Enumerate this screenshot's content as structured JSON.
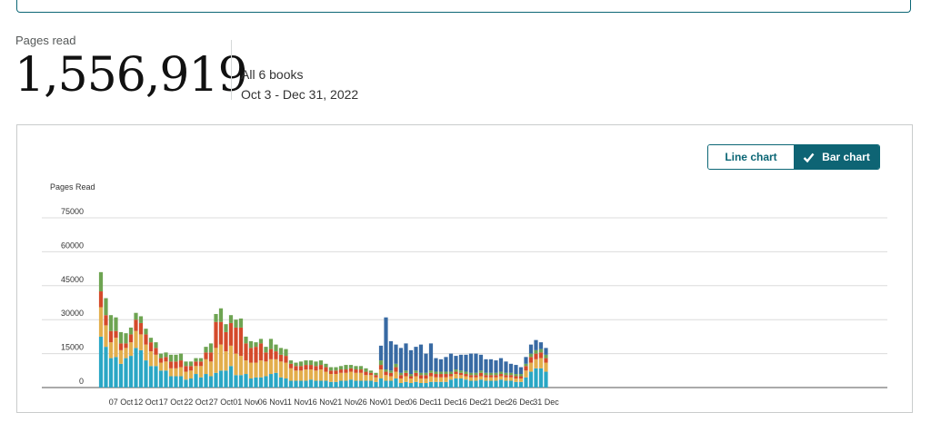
{
  "summary": {
    "label": "Pages read",
    "total": "1,556,919",
    "books": "All 6 books",
    "date_range": "Oct 3 - Dec 31, 2022"
  },
  "toggle": {
    "line_label": "Line chart",
    "bar_label": "Bar chart",
    "selected": "bar"
  },
  "chart_data": {
    "type": "bar",
    "stacked": true,
    "ylabel": "Pages Read",
    "ylim": [
      0,
      75000
    ],
    "yticks": [
      "0",
      "15000",
      "30000",
      "45000",
      "60000",
      "75000"
    ],
    "grid": true,
    "colors": [
      "#2aa7c5",
      "#e3ae4c",
      "#d44a2b",
      "#6ea452",
      "#386aa3"
    ],
    "xtick_labels": [
      "07 Oct",
      "12 Oct",
      "17 Oct",
      "22 Oct",
      "27 Oct",
      "01 Nov",
      "06 Nov",
      "11 Nov",
      "16 Nov",
      "21 Nov",
      "26 Nov",
      "01 Dec",
      "06 Dec",
      "11 Dec",
      "16 Dec",
      "21 Dec",
      "26 Dec",
      "31 Dec"
    ],
    "x": [
      "Oct 3",
      "Oct 4",
      "Oct 5",
      "Oct 6",
      "Oct 7",
      "Oct 8",
      "Oct 9",
      "Oct 10",
      "Oct 11",
      "Oct 12",
      "Oct 13",
      "Oct 14",
      "Oct 15",
      "Oct 16",
      "Oct 17",
      "Oct 18",
      "Oct 19",
      "Oct 20",
      "Oct 21",
      "Oct 22",
      "Oct 23",
      "Oct 24",
      "Oct 25",
      "Oct 26",
      "Oct 27",
      "Oct 28",
      "Oct 29",
      "Oct 30",
      "Oct 31",
      "Nov 1",
      "Nov 2",
      "Nov 3",
      "Nov 4",
      "Nov 5",
      "Nov 6",
      "Nov 7",
      "Nov 8",
      "Nov 9",
      "Nov 10",
      "Nov 11",
      "Nov 12",
      "Nov 13",
      "Nov 14",
      "Nov 15",
      "Nov 16",
      "Nov 17",
      "Nov 18",
      "Nov 19",
      "Nov 20",
      "Nov 21",
      "Nov 22",
      "Nov 23",
      "Nov 24",
      "Nov 25",
      "Nov 26",
      "Nov 27",
      "Nov 28",
      "Nov 29",
      "Nov 30",
      "Dec 1",
      "Dec 2",
      "Dec 3",
      "Dec 4",
      "Dec 5",
      "Dec 6",
      "Dec 7",
      "Dec 8",
      "Dec 9",
      "Dec 10",
      "Dec 11",
      "Dec 12",
      "Dec 13",
      "Dec 14",
      "Dec 15",
      "Dec 16",
      "Dec 17",
      "Dec 18",
      "Dec 19",
      "Dec 20",
      "Dec 21",
      "Dec 22",
      "Dec 23",
      "Dec 24",
      "Dec 25",
      "Dec 26",
      "Dec 27",
      "Dec 28",
      "Dec 29",
      "Dec 30",
      "Dec 31"
    ],
    "series": [
      {
        "values": [
          22500,
          18000,
          13000,
          13500,
          10500,
          13000,
          14000,
          17500,
          16500,
          12000,
          9500,
          9500,
          7500,
          7500,
          5000,
          5000,
          5000,
          3500,
          4000,
          6000,
          4500,
          6000,
          5000,
          6500,
          7500,
          7500,
          9500,
          5500,
          5500,
          6000,
          4000,
          4500,
          4500,
          5000,
          6000,
          6500,
          4500,
          4000,
          3000,
          3000,
          3000,
          3000,
          3500,
          3000,
          3000,
          3000,
          2500,
          2500,
          3000,
          3000,
          3500,
          3000,
          3000,
          3000,
          3000,
          2500,
          4000,
          3000,
          3000,
          4000,
          2000,
          2500,
          2000,
          2500,
          2000,
          2000,
          2500,
          2500,
          2500,
          2500,
          3500,
          4000,
          4000,
          3500,
          3000,
          3000,
          3500,
          3000,
          3000,
          3000,
          3500,
          3000,
          3000,
          2500,
          2500,
          4500,
          7000,
          8500,
          8500,
          7000
        ]
      },
      {
        "values": [
          13000,
          9500,
          7000,
          8500,
          6000,
          4500,
          6000,
          7500,
          7000,
          7000,
          6500,
          5000,
          3500,
          4000,
          3500,
          3500,
          4000,
          3500,
          3500,
          3500,
          5000,
          6500,
          6500,
          11000,
          11500,
          8500,
          9000,
          9500,
          8500,
          6000,
          7000,
          6500,
          7500,
          6500,
          6500,
          6000,
          7000,
          7000,
          5500,
          4500,
          4500,
          5000,
          4500,
          4500,
          5000,
          4000,
          3500,
          3500,
          3500,
          3500,
          3500,
          3500,
          3500,
          2500,
          2500,
          2000,
          4000,
          2500,
          2000,
          3000,
          2000,
          2500,
          2000,
          2500,
          2000,
          2000,
          2500,
          2000,
          2000,
          2000,
          1500,
          2000,
          1500,
          1500,
          1500,
          1500,
          1500,
          1500,
          1500,
          1500,
          1500,
          1500,
          1500,
          1500,
          1500,
          3000,
          4000,
          4000,
          4500,
          4000
        ]
      },
      {
        "values": [
          7000,
          4500,
          5000,
          3000,
          3000,
          2000,
          3500,
          5000,
          5000,
          4500,
          4000,
          3000,
          2000,
          2000,
          3000,
          3000,
          3000,
          2500,
          2000,
          2000,
          2000,
          3000,
          4000,
          11500,
          10000,
          8500,
          10000,
          11500,
          12500,
          7500,
          6500,
          7000,
          7500,
          4000,
          4500,
          3500,
          3000,
          3000,
          2000,
          2000,
          2000,
          2000,
          2000,
          2000,
          2000,
          2000,
          1500,
          1500,
          1500,
          1500,
          1500,
          1500,
          1500,
          1500,
          1000,
          1000,
          2000,
          1500,
          1500,
          2000,
          1500,
          1500,
          1000,
          1500,
          1500,
          1500,
          1500,
          1500,
          1500,
          1500,
          1000,
          1000,
          1000,
          1000,
          1000,
          1000,
          1500,
          1000,
          1000,
          1000,
          1000,
          1000,
          1000,
          1000,
          1000,
          2000,
          2500,
          2500,
          2500,
          2000
        ]
      },
      {
        "values": [
          8500,
          7500,
          7000,
          6000,
          5000,
          4500,
          3000,
          3000,
          3000,
          2500,
          2000,
          2500,
          2000,
          2000,
          3000,
          3000,
          3000,
          2000,
          2000,
          1500,
          1500,
          2500,
          4000,
          3500,
          6000,
          3500,
          3500,
          3500,
          4000,
          3000,
          3000,
          2000,
          2000,
          2500,
          4500,
          3000,
          3000,
          3000,
          1500,
          1500,
          2000,
          2000,
          2000,
          2000,
          2000,
          1500,
          1500,
          1500,
          1500,
          2000,
          1500,
          1500,
          1500,
          1500,
          1000,
          1000,
          2000,
          1000,
          1000,
          1500,
          1000,
          1000,
          1000,
          1000,
          1000,
          1000,
          1000,
          1000,
          1000,
          1000,
          1000,
          1000,
          1000,
          1000,
          1000,
          1000,
          1000,
          1000,
          1000,
          1000,
          1000,
          1000,
          1000,
          1000,
          1000,
          1000,
          1500,
          1500,
          1500,
          1500
        ]
      },
      {
        "values": [
          0,
          0,
          0,
          0,
          0,
          0,
          0,
          0,
          0,
          0,
          0,
          0,
          0,
          0,
          0,
          0,
          0,
          0,
          0,
          0,
          0,
          0,
          0,
          0,
          0,
          0,
          0,
          0,
          0,
          0,
          0,
          0,
          0,
          0,
          0,
          0,
          0,
          0,
          0,
          0,
          0,
          0,
          0,
          0,
          0,
          0,
          0,
          0,
          0,
          0,
          0,
          0,
          0,
          0,
          0,
          0,
          6500,
          23000,
          13000,
          8500,
          11000,
          12000,
          10500,
          10500,
          12500,
          8500,
          12000,
          6000,
          5500,
          6500,
          8000,
          6000,
          7000,
          7500,
          8500,
          8500,
          7000,
          6000,
          6000,
          5500,
          6000,
          5000,
          4000,
          4000,
          3000,
          3000,
          4000,
          4500,
          3000,
          3000
        ]
      }
    ]
  }
}
